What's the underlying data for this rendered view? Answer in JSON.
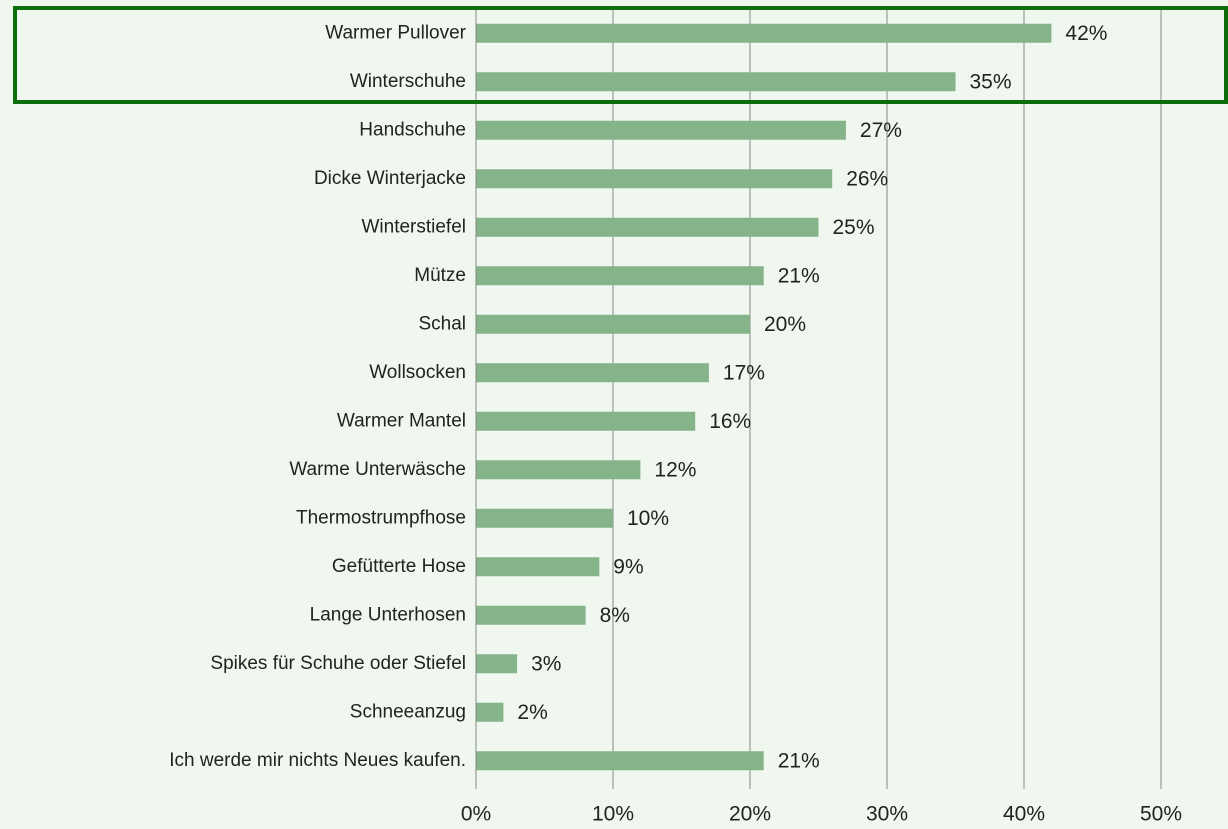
{
  "chart_data": {
    "type": "barh",
    "categories": [
      "Warmer Pullover",
      "Winterschuhe",
      "Handschuhe",
      "Dicke Winterjacke",
      "Winterstiefel",
      "Mütze",
      "Schal",
      "Wollsocken",
      "Warmer Mantel",
      "Warme Unterwäsche",
      "Thermostrumpfhose",
      "Gefütterte Hose",
      "Lange Unterhosen",
      "Spikes für Schuhe oder Stiefel",
      "Schneeanzug",
      "Ich werde mir nichts Neues kaufen."
    ],
    "values": [
      42,
      35,
      27,
      26,
      25,
      21,
      20,
      17,
      16,
      12,
      10,
      9,
      8,
      3,
      2,
      21
    ],
    "value_labels": [
      "42%",
      "35%",
      "27%",
      "26%",
      "25%",
      "21%",
      "20%",
      "17%",
      "16%",
      "12%",
      "10%",
      "9%",
      "8%",
      "3%",
      "2%",
      "21%"
    ],
    "color": "#85b38a",
    "xlim": [
      0,
      50
    ],
    "xticks": [
      {
        "value": 0,
        "label": "0%"
      },
      {
        "value": 10,
        "label": "10%"
      },
      {
        "value": 20,
        "label": "20%"
      },
      {
        "value": 30,
        "label": "30%"
      },
      {
        "value": 40,
        "label": "40%"
      },
      {
        "value": 50,
        "label": "50%"
      }
    ],
    "grid": true
  }
}
